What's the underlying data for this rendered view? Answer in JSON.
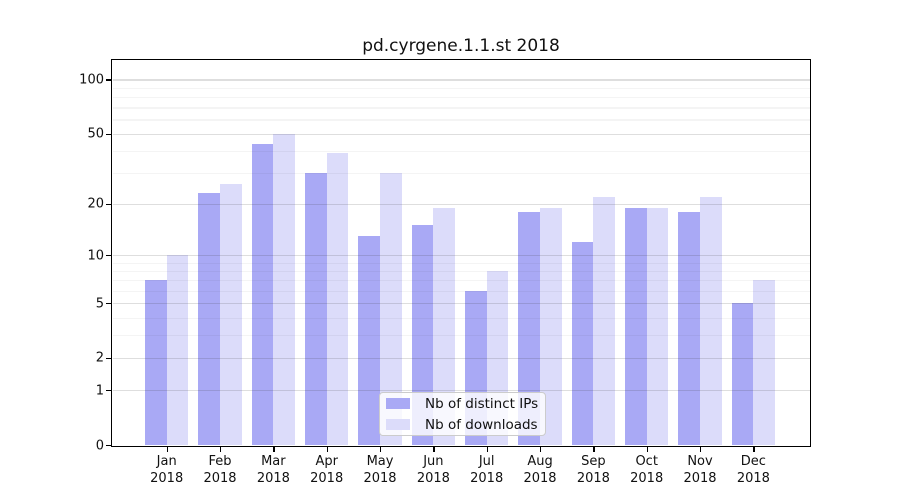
{
  "chart_data": {
    "type": "bar",
    "title": "pd.cyrgene.1.1.st 2018",
    "categories": [
      "Jan",
      "Feb",
      "Mar",
      "Apr",
      "May",
      "Jun",
      "Jul",
      "Aug",
      "Sep",
      "Oct",
      "Nov",
      "Dec"
    ],
    "year_label": "2018",
    "series": [
      {
        "name": "Nb of distinct IPs",
        "color": "#a9a9f5",
        "values": [
          7,
          23,
          44,
          30,
          13,
          15,
          6,
          18,
          12,
          19,
          18,
          5
        ]
      },
      {
        "name": "Nb of downloads",
        "color": "#dcdcfa",
        "values": [
          10,
          26,
          50,
          39,
          30,
          19,
          8,
          19,
          22,
          19,
          22,
          7
        ]
      }
    ],
    "yscale": "log1p",
    "ylim": [
      0,
      130
    ],
    "yticks": [
      0,
      1,
      2,
      5,
      10,
      20,
      50,
      100
    ],
    "yticks_minor": [
      3,
      4,
      6,
      7,
      8,
      9,
      30,
      40,
      60,
      70,
      80,
      90
    ],
    "grid": "horizontal",
    "legend_position": "bottom-center",
    "background_color": "#ffffff",
    "text_color": "#111111"
  }
}
